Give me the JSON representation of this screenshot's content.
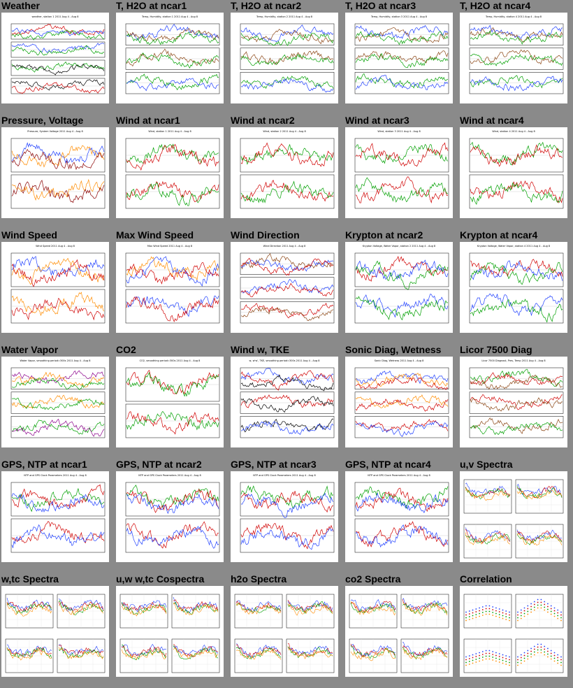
{
  "page_title": "",
  "panels": [
    {
      "title": "Weather",
      "kind": "ts4",
      "header": "weather, station 1 2011 Aug 4 - Aug 8",
      "colors": [
        "#d00000",
        "#2040ff",
        "#00a000",
        "#000000"
      ]
    },
    {
      "title": "T, H2O at ncar1",
      "kind": "ts3",
      "header": "Temp, Humidity, station 1 2011 Aug 4 - Aug 8",
      "colors": [
        "#2040ff",
        "#8b4513",
        "#00a000"
      ]
    },
    {
      "title": "T, H2O at ncar2",
      "kind": "ts3",
      "header": "Temp, Humidity, station 2 2011 Aug 4 - Aug 8",
      "colors": [
        "#2040ff",
        "#8b4513",
        "#00a000"
      ]
    },
    {
      "title": "T, H2O at ncar3",
      "kind": "ts3",
      "header": "Temp, Humidity, station 3 2011 Aug 4 - Aug 8",
      "colors": [
        "#2040ff",
        "#8b4513",
        "#00a000"
      ]
    },
    {
      "title": "T, H2O at ncar4",
      "kind": "ts3",
      "header": "Temp, Humidity, station 4 2011 Aug 4 - Aug 8",
      "colors": [
        "#2040ff",
        "#8b4513",
        "#00a000"
      ]
    },
    {
      "title": "Pressure, Voltage",
      "kind": "ts2",
      "header": "Pressure, System Voltage 2011 Aug 4 - Aug 8",
      "colors": [
        "#2040ff",
        "#ff8c00",
        "#8b0000"
      ]
    },
    {
      "title": "Wind at ncar1",
      "kind": "ts2",
      "header": "Wind, station 1 2011 Aug 4 - Aug 8",
      "colors": [
        "#00a000",
        "#d00000"
      ]
    },
    {
      "title": "Wind at ncar2",
      "kind": "ts2",
      "header": "Wind, station 2 2011 Aug 4 - Aug 8",
      "colors": [
        "#00a000",
        "#d00000"
      ]
    },
    {
      "title": "Wind at ncar3",
      "kind": "ts2",
      "header": "Wind, station 3 2011 Aug 4 - Aug 8",
      "colors": [
        "#00a000",
        "#d00000"
      ]
    },
    {
      "title": "Wind at ncar4",
      "kind": "ts2",
      "header": "Wind, station 4 2011 Aug 4 - Aug 8",
      "colors": [
        "#00a000",
        "#d00000"
      ]
    },
    {
      "title": "Wind Speed",
      "kind": "ts2",
      "header": "Wind Speed 2011 Aug 4 - Aug 8",
      "colors": [
        "#2040ff",
        "#ff8c00",
        "#d00000"
      ]
    },
    {
      "title": "Max Wind Speed",
      "kind": "ts2",
      "header": "Max Wind Speed 2011 Aug 4 - Aug 8",
      "colors": [
        "#ff8c00",
        "#2040ff",
        "#d00000"
      ]
    },
    {
      "title": "Wind Direction",
      "kind": "ts3",
      "header": "Wind Direction 2011 Aug 4 - Aug 8",
      "colors": [
        "#8b4513",
        "#2040ff",
        "#d00000"
      ]
    },
    {
      "title": "Krypton at ncar2",
      "kind": "ts2",
      "header": "Krypton Voltage, Water Vapor, station 2 2011 Aug 4 - Aug 8",
      "colors": [
        "#d00000",
        "#2040ff",
        "#00a000"
      ]
    },
    {
      "title": "Krypton at ncar4",
      "kind": "ts2",
      "header": "Krypton Voltage, Water Vapor, station 4 2011 Aug 4 - Aug 8",
      "colors": [
        "#d00000",
        "#2040ff",
        "#00a000"
      ]
    },
    {
      "title": "Water Vapor",
      "kind": "ts3",
      "header": "Water Vapor, smoothing period=300s 2011 Aug 4 - Aug 8",
      "colors": [
        "#8b008b",
        "#ff8c00",
        "#00a000"
      ]
    },
    {
      "title": "CO2",
      "kind": "ts2",
      "header": "CO2, smoothing period=300s 2011 Aug 4 - Aug 8",
      "colors": [
        "#d00000",
        "#00a000"
      ]
    },
    {
      "title": "Wind w, TKE",
      "kind": "ts3",
      "header": "w, w'w', TKE, smoothing period=300s 2011 Aug 4 - Aug 8",
      "colors": [
        "#2040ff",
        "#d00000",
        "#000000"
      ]
    },
    {
      "title": "Sonic Diag, Wetness",
      "kind": "ts3",
      "header": "Sonic Diag, Wetness 2011 Aug 4 - Aug 8",
      "colors": [
        "#2040ff",
        "#ff8c00",
        "#d00000"
      ]
    },
    {
      "title": "Licor 7500 Diag",
      "kind": "ts3",
      "header": "Licor 7500 Diagnost, Pres, Temp 2011 Aug 4 - Aug 8",
      "colors": [
        "#00a000",
        "#d00000",
        "#8b4513"
      ]
    },
    {
      "title": "GPS, NTP at ncar1",
      "kind": "ts2",
      "header": "NTP and GPS Clock Parameters 2011 Aug 4 - Aug 8",
      "colors": [
        "#00a000",
        "#d00000",
        "#2040ff"
      ]
    },
    {
      "title": "GPS, NTP at ncar2",
      "kind": "ts2",
      "header": "NTP and GPS Clock Parameters 2011 Aug 4 - Aug 8",
      "colors": [
        "#00a000",
        "#d00000",
        "#2040ff"
      ]
    },
    {
      "title": "GPS, NTP at ncar3",
      "kind": "ts2",
      "header": "NTP and GPS Clock Parameters 2011 Aug 4 - Aug 8",
      "colors": [
        "#00a000",
        "#d00000",
        "#2040ff"
      ]
    },
    {
      "title": "GPS, NTP at ncar4",
      "kind": "ts2",
      "header": "NTP and GPS Clock Parameters 2011 Aug 4 - Aug 8",
      "colors": [
        "#00a000",
        "#d00000",
        "#2040ff"
      ]
    },
    {
      "title": "u,v Spectra",
      "kind": "spec",
      "header": "",
      "colors": [
        "#2040ff",
        "#d00000",
        "#00a000",
        "#ff8c00"
      ]
    },
    {
      "title": "w,tc Spectra",
      "kind": "spec",
      "header": "",
      "colors": [
        "#2040ff",
        "#d00000",
        "#00a000",
        "#ff8c00"
      ]
    },
    {
      "title": "u,w w,tc Cospectra",
      "kind": "spec",
      "header": "",
      "colors": [
        "#2040ff",
        "#d00000",
        "#00a000",
        "#ff8c00"
      ]
    },
    {
      "title": "h2o Spectra",
      "kind": "spec",
      "header": "",
      "colors": [
        "#2040ff",
        "#d00000",
        "#00a000",
        "#ff8c00"
      ]
    },
    {
      "title": "co2 Spectra",
      "kind": "spec",
      "header": "",
      "colors": [
        "#2040ff",
        "#d00000",
        "#00a000",
        "#ff8c00"
      ]
    },
    {
      "title": "Correlation",
      "kind": "corr",
      "header": "",
      "colors": [
        "#2040ff",
        "#d00000",
        "#00a000",
        "#ff8c00"
      ]
    }
  ]
}
